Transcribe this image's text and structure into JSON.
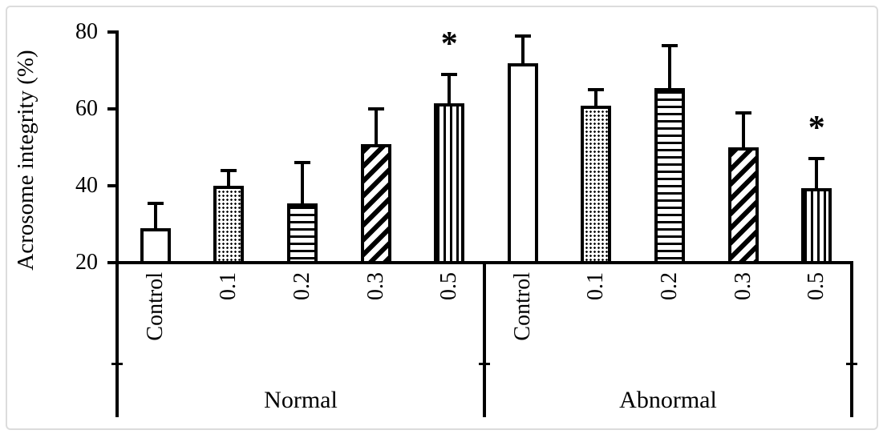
{
  "chart_data": {
    "type": "bar",
    "title": "",
    "xlabel": "",
    "ylabel": "Acrosome integrity (%)",
    "ylim": [
      20,
      80
    ],
    "yticks": [
      20,
      40,
      60,
      80
    ],
    "grid": false,
    "legend_position": "none",
    "categories": [
      "Control",
      "0.1",
      "0.2",
      "0.3",
      "0.5"
    ],
    "bar_patterns": [
      "plain",
      "dots",
      "horizontal-lines",
      "diagonal-stripes",
      "vertical-lines"
    ],
    "significance_marker": "*",
    "groups": [
      {
        "label": "Normal",
        "values": [
          28.5,
          39.5,
          35,
          50.5,
          61
        ],
        "errors_upper": [
          7,
          4.5,
          11,
          9.5,
          8
        ],
        "significance": [
          "",
          "",
          "",
          "",
          "*"
        ]
      },
      {
        "label": "Abnormal",
        "values": [
          71.5,
          60.5,
          65,
          49.5,
          39
        ],
        "errors_upper": [
          7.5,
          4.5,
          11.5,
          9.5,
          8
        ],
        "significance": [
          "",
          "",
          "",
          "",
          "*"
        ]
      }
    ],
    "colors": {
      "line": "#000000",
      "bar_fill": "#ffffff",
      "frame_border": "#dcdcdc"
    }
  }
}
